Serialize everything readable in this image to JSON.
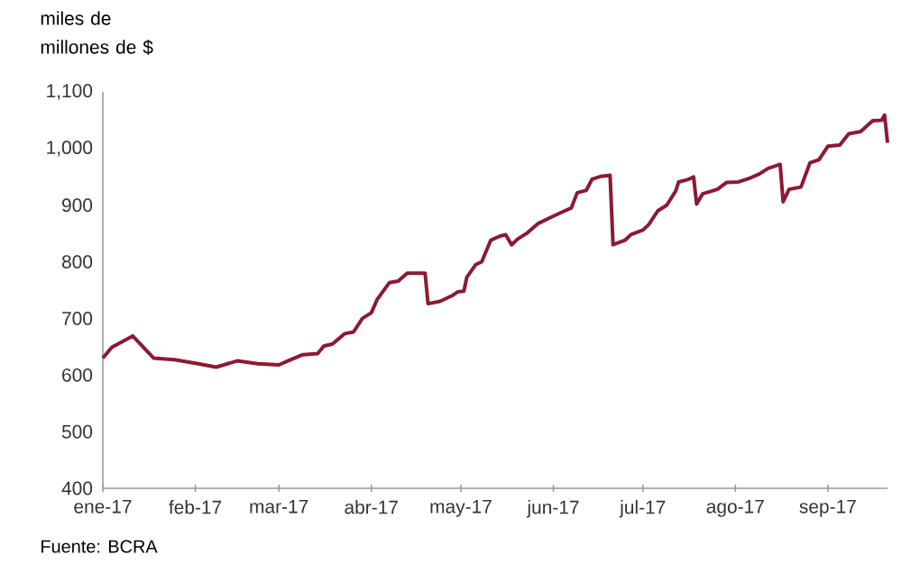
{
  "chart_data": {
    "type": "line",
    "ylabel": "miles de millones de $",
    "annotations": [
      "Fuente: BCRA"
    ],
    "xlim": [
      "2017-01-01",
      "2017-09-21"
    ],
    "xticks": [
      {
        "value": "2017-01-01",
        "label": "ene-17"
      },
      {
        "value": "2017-02-01",
        "label": "feb-17"
      },
      {
        "value": "2017-03-01",
        "label": "mar-17"
      },
      {
        "value": "2017-04-01",
        "label": "abr-17"
      },
      {
        "value": "2017-05-01",
        "label": "may-17"
      },
      {
        "value": "2017-06-01",
        "label": "jun-17"
      },
      {
        "value": "2017-07-01",
        "label": "jul-17"
      },
      {
        "value": "2017-08-01",
        "label": "ago-17"
      },
      {
        "value": "2017-09-01",
        "label": "sep-17"
      }
    ],
    "ylim": [
      400,
      1100
    ],
    "yticks": [
      400,
      500,
      600,
      700,
      800,
      900,
      {
        "value": 1000,
        "label": "1,000"
      },
      {
        "value": 1100,
        "label": "1,100"
      }
    ],
    "grid": false,
    "series": [
      {
        "color": "#8b1a32",
        "x": [
          "2017-01-01",
          "2017-01-04",
          "2017-01-11",
          "2017-01-18",
          "2017-01-25",
          "2017-02-02",
          "2017-02-08",
          "2017-02-15",
          "2017-02-22",
          "2017-03-01",
          "2017-03-04",
          "2017-03-09",
          "2017-03-14",
          "2017-03-16",
          "2017-03-19",
          "2017-03-23",
          "2017-03-26",
          "2017-03-29",
          "2017-04-01",
          "2017-04-03",
          "2017-04-07",
          "2017-04-10",
          "2017-04-13",
          "2017-04-19",
          "2017-04-20",
          "2017-04-24",
          "2017-04-28",
          "2017-04-30",
          "2017-05-02",
          "2017-05-03",
          "2017-05-06",
          "2017-05-08",
          "2017-05-11",
          "2017-05-14",
          "2017-05-16",
          "2017-05-18",
          "2017-05-20",
          "2017-05-23",
          "2017-05-27",
          "2017-05-31",
          "2017-06-04",
          "2017-06-07",
          "2017-06-09",
          "2017-06-12",
          "2017-06-14",
          "2017-06-17",
          "2017-06-20",
          "2017-06-21",
          "2017-06-25",
          "2017-06-27",
          "2017-07-01",
          "2017-07-03",
          "2017-07-06",
          "2017-07-09",
          "2017-07-12",
          "2017-07-13",
          "2017-07-16",
          "2017-07-18",
          "2017-07-19",
          "2017-07-21",
          "2017-07-26",
          "2017-07-29",
          "2017-08-02",
          "2017-08-06",
          "2017-08-09",
          "2017-08-12",
          "2017-08-16",
          "2017-08-17",
          "2017-08-19",
          "2017-08-23",
          "2017-08-26",
          "2017-08-29",
          "2017-09-01",
          "2017-09-05",
          "2017-09-08",
          "2017-09-12",
          "2017-09-16",
          "2017-09-19",
          "2017-09-20",
          "2017-09-21"
        ],
        "values": [
          630,
          649,
          669,
          630,
          627,
          620,
          614,
          625,
          620,
          618,
          625,
          636,
          638,
          651,
          655,
          673,
          676,
          700,
          710,
          734,
          763,
          766,
          780,
          780,
          726,
          730,
          740,
          747,
          748,
          773,
          795,
          800,
          838,
          845,
          848,
          830,
          840,
          850,
          868,
          878,
          888,
          895,
          922,
          926,
          946,
          951,
          953,
          830,
          838,
          848,
          856,
          866,
          890,
          900,
          925,
          941,
          945,
          950,
          902,
          920,
          928,
          940,
          941,
          948,
          955,
          965,
          972,
          906,
          928,
          932,
          975,
          980,
          1004,
          1006,
          1026,
          1030,
          1049,
          1050,
          1059,
          1010
        ]
      }
    ]
  }
}
